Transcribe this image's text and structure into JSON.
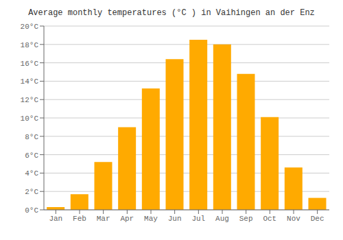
{
  "chart_data": {
    "type": "bar",
    "title": "Average monthly temperatures (°C ) in Vaihingen an der Enz",
    "categories": [
      "Jan",
      "Feb",
      "Mar",
      "Apr",
      "May",
      "Jun",
      "Jul",
      "Aug",
      "Sep",
      "Oct",
      "Nov",
      "Dec"
    ],
    "values": [
      0.3,
      1.7,
      5.2,
      9.0,
      13.2,
      16.4,
      18.5,
      18.0,
      14.8,
      10.1,
      4.6,
      1.3
    ],
    "color": "#FFAA00",
    "ylim": [
      0,
      20
    ],
    "yticks": [
      {
        "value": 0,
        "label": "0°C"
      },
      {
        "value": 2,
        "label": "2°C"
      },
      {
        "value": 4,
        "label": "4°C"
      },
      {
        "value": 6,
        "label": "6°C"
      },
      {
        "value": 8,
        "label": "8°C"
      },
      {
        "value": 10,
        "label": "10°C"
      },
      {
        "value": 12,
        "label": "12°C"
      },
      {
        "value": 14,
        "label": "14°C"
      },
      {
        "value": 16,
        "label": "16°C"
      },
      {
        "value": 18,
        "label": "18°C"
      },
      {
        "value": 20,
        "label": "20°C"
      }
    ],
    "grid": true
  }
}
